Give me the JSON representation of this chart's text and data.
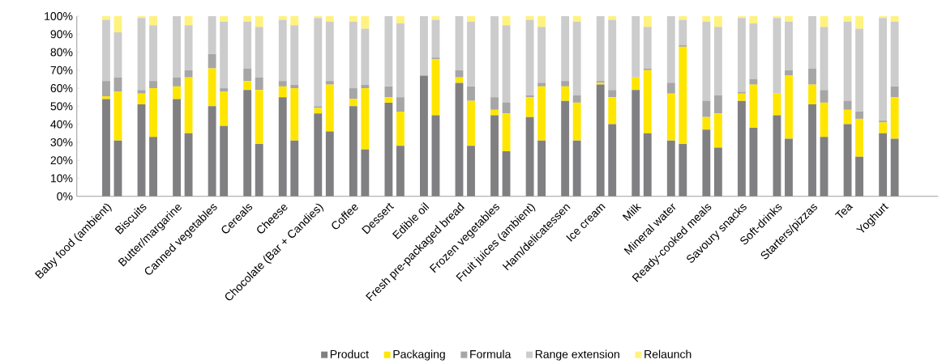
{
  "chart_data": {
    "type": "bar",
    "stacked": true,
    "legend": "bottom",
    "categories": [
      "Baby food (ambient)",
      null,
      "Biscuits",
      null,
      "Butter/margarine",
      null,
      "Canned vegetables",
      null,
      "Cereals",
      null,
      "Cheese",
      null,
      "Chocolate (Bar + Candies)",
      null,
      "Coffee",
      null,
      "Dessert",
      null,
      "Edible oil",
      null,
      "Fresh pre-packaged bread",
      null,
      "Frozen vegetables",
      null,
      "Fruit juices (ambient)",
      null,
      "Ham/delicatessen",
      null,
      "Ice cream",
      null,
      "Milk",
      null,
      "Mineral water",
      null,
      "Ready-cooked meals",
      null,
      "Savoury snacks",
      null,
      "Soft-drinks",
      null,
      "Starters/pizzas",
      null,
      "Tea",
      null,
      "Yoghurt",
      null
    ],
    "series": [
      {
        "name": "Product",
        "color": "#808083",
        "values": [
          54,
          31,
          51,
          33,
          54,
          35,
          50,
          39,
          59,
          29,
          55,
          31,
          46,
          36,
          50,
          26,
          52,
          28,
          67,
          45,
          63,
          28,
          45,
          25,
          44,
          31,
          53,
          31,
          62,
          40,
          59,
          35,
          31,
          29,
          37,
          27,
          53,
          38,
          45,
          32,
          51,
          33,
          40,
          22,
          35,
          32
        ]
      },
      {
        "name": "Packaging",
        "color": "#ffe600",
        "values": [
          1.5,
          27,
          6,
          27,
          7,
          31,
          21,
          19,
          5,
          30,
          6,
          29,
          3,
          26,
          4,
          34,
          3,
          19,
          0,
          31,
          3,
          25,
          3,
          21,
          11,
          30,
          8,
          21,
          1,
          15,
          7,
          35,
          26,
          54,
          7,
          19,
          4,
          24,
          12,
          35,
          11,
          19,
          8,
          21,
          6,
          23
        ]
      },
      {
        "name": "Formula",
        "color": "#a6a6a6",
        "values": [
          8.5,
          8,
          2,
          4,
          5,
          4,
          8,
          2,
          7,
          7,
          3,
          2,
          1,
          2,
          6,
          2,
          6,
          8,
          0,
          1,
          4,
          8,
          7,
          6,
          1,
          2,
          3,
          4,
          1,
          4,
          0,
          1,
          6,
          1,
          9,
          10,
          1,
          3,
          0,
          3,
          9,
          7,
          5,
          4,
          1,
          6
        ]
      },
      {
        "name": "Range extension",
        "color": "#cccccd",
        "values": [
          34,
          25,
          40,
          31,
          34,
          25,
          21,
          37,
          26,
          28,
          34,
          33,
          49,
          33,
          37,
          31,
          39,
          41,
          33,
          21,
          30,
          36,
          45,
          43,
          42,
          31,
          36,
          41,
          36,
          39,
          34,
          23,
          37,
          14,
          44,
          38,
          41,
          31,
          42,
          27,
          29,
          35,
          44,
          46,
          57,
          36
        ]
      },
      {
        "name": "Relaunch",
        "color": "#fff27f",
        "values": [
          2,
          9,
          1,
          5,
          0,
          5,
          0,
          3,
          3,
          6,
          2,
          5,
          1,
          3,
          3,
          7,
          0,
          4,
          0,
          2,
          0,
          3,
          0,
          5,
          2,
          6,
          0,
          3,
          0,
          2,
          0,
          6,
          0,
          2,
          3,
          6,
          1,
          4,
          1,
          3,
          0,
          6,
          3,
          7,
          1,
          3
        ]
      }
    ],
    "ylim": [
      0,
      100
    ],
    "yticks": [
      {
        "value": 0,
        "label": "0%"
      },
      {
        "value": 10,
        "label": "10%"
      },
      {
        "value": 20,
        "label": "20%"
      },
      {
        "value": 30,
        "label": "30%"
      },
      {
        "value": 40,
        "label": "40%"
      },
      {
        "value": 50,
        "label": "50%"
      },
      {
        "value": 60,
        "label": "60%"
      },
      {
        "value": 70,
        "label": "70%"
      },
      {
        "value": 80,
        "label": "80%"
      },
      {
        "value": 90,
        "label": "90%"
      },
      {
        "value": 100,
        "label": "100%"
      }
    ]
  }
}
